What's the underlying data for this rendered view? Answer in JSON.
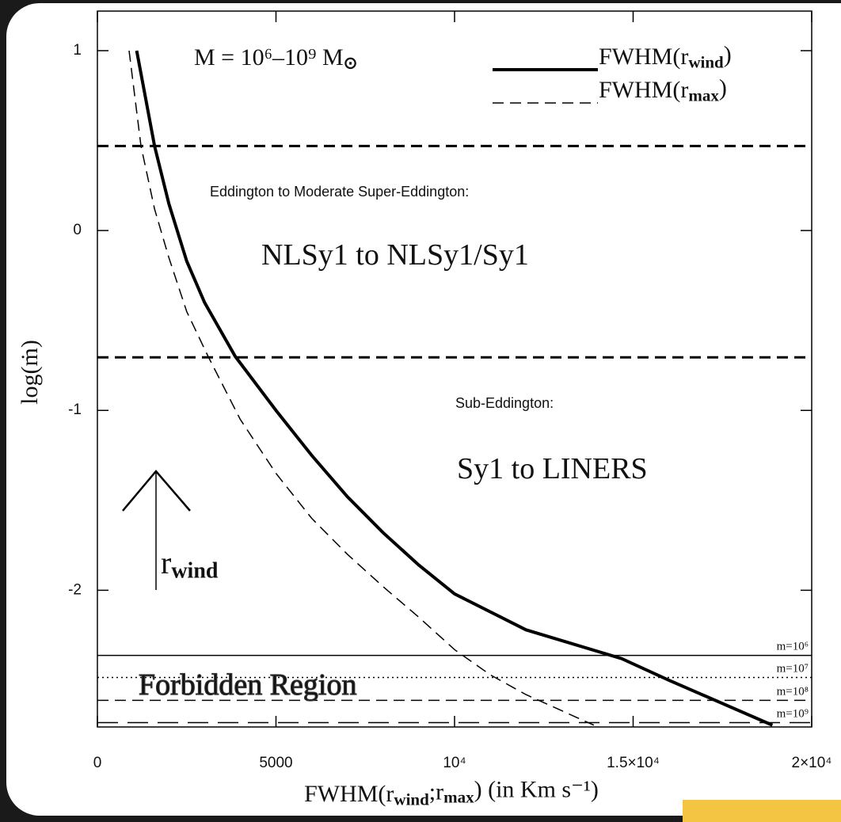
{
  "chart_data": {
    "type": "line",
    "annotations": {
      "mass": "M = 10⁶–10⁹ M_{⊙}",
      "upper_header": "Eddington to Moderate Super-Eddington:",
      "upper_region": "NLSy1 to NLSy1/Sy1",
      "lower_header": "Sub-Eddington:",
      "lower_region": "Sy1 to LINERS",
      "forbidden": "Forbidden Region",
      "arrow": "r_{wind}"
    },
    "x_label": "FWHM(r_{wind};r_{max}) (in Km s⁻¹)",
    "y_label": "log(ṁ)",
    "xlim": [
      0,
      20000
    ],
    "ylim": [
      -2.76,
      1.22
    ],
    "xticks": [
      0,
      5000,
      {
        "value": 10000,
        "label": "10⁴"
      },
      {
        "value": 15000,
        "label": "1.5×10⁴"
      },
      {
        "value": 20000,
        "label": "2×10⁴"
      }
    ],
    "yticks": [
      1,
      0,
      -1,
      -2
    ],
    "series": [
      {
        "name": "FWHM(r_{wind})",
        "color": "#000000",
        "style": "solid",
        "x": [
          1100,
          1600,
          2000,
          2500,
          3000,
          3860,
          5000,
          6000,
          7000,
          8000,
          9000,
          10000,
          12000,
          14680,
          16000,
          18900
        ],
        "y": [
          1,
          0.47,
          0.15,
          -0.17,
          -0.4,
          -0.7,
          -1.0,
          -1.25,
          -1.48,
          -1.68,
          -1.86,
          -2.02,
          -2.22,
          -2.38,
          -2.5,
          -2.75
        ]
      },
      {
        "name": "FWHM(r_{max})",
        "color": "#000000",
        "style": "dashed",
        "x": [
          887,
          1220,
          1600,
          2000,
          2500,
          3100,
          4000,
          5000,
          6000,
          7000,
          8000,
          9000,
          10000,
          11000,
          12000,
          13900
        ],
        "y": [
          1,
          0.47,
          0.12,
          -0.15,
          -0.45,
          -0.7,
          -1.05,
          -1.35,
          -1.6,
          -1.8,
          -1.98,
          -2.15,
          -2.33,
          -2.47,
          -2.58,
          -2.75
        ]
      }
    ],
    "reference_lines": [
      {
        "y": 0.47,
        "style": "dashed"
      },
      {
        "y": -0.705,
        "style": "dashed"
      },
      {
        "y": -2.362,
        "style": "solid",
        "label": "m=10⁶"
      },
      {
        "y": -2.485,
        "style": "dotted",
        "label": "m=10⁷"
      },
      {
        "y": -2.612,
        "style": "dashed",
        "label": "m=10⁸"
      },
      {
        "y": -2.736,
        "style": "longdash",
        "label": "m=10⁹"
      }
    ]
  }
}
